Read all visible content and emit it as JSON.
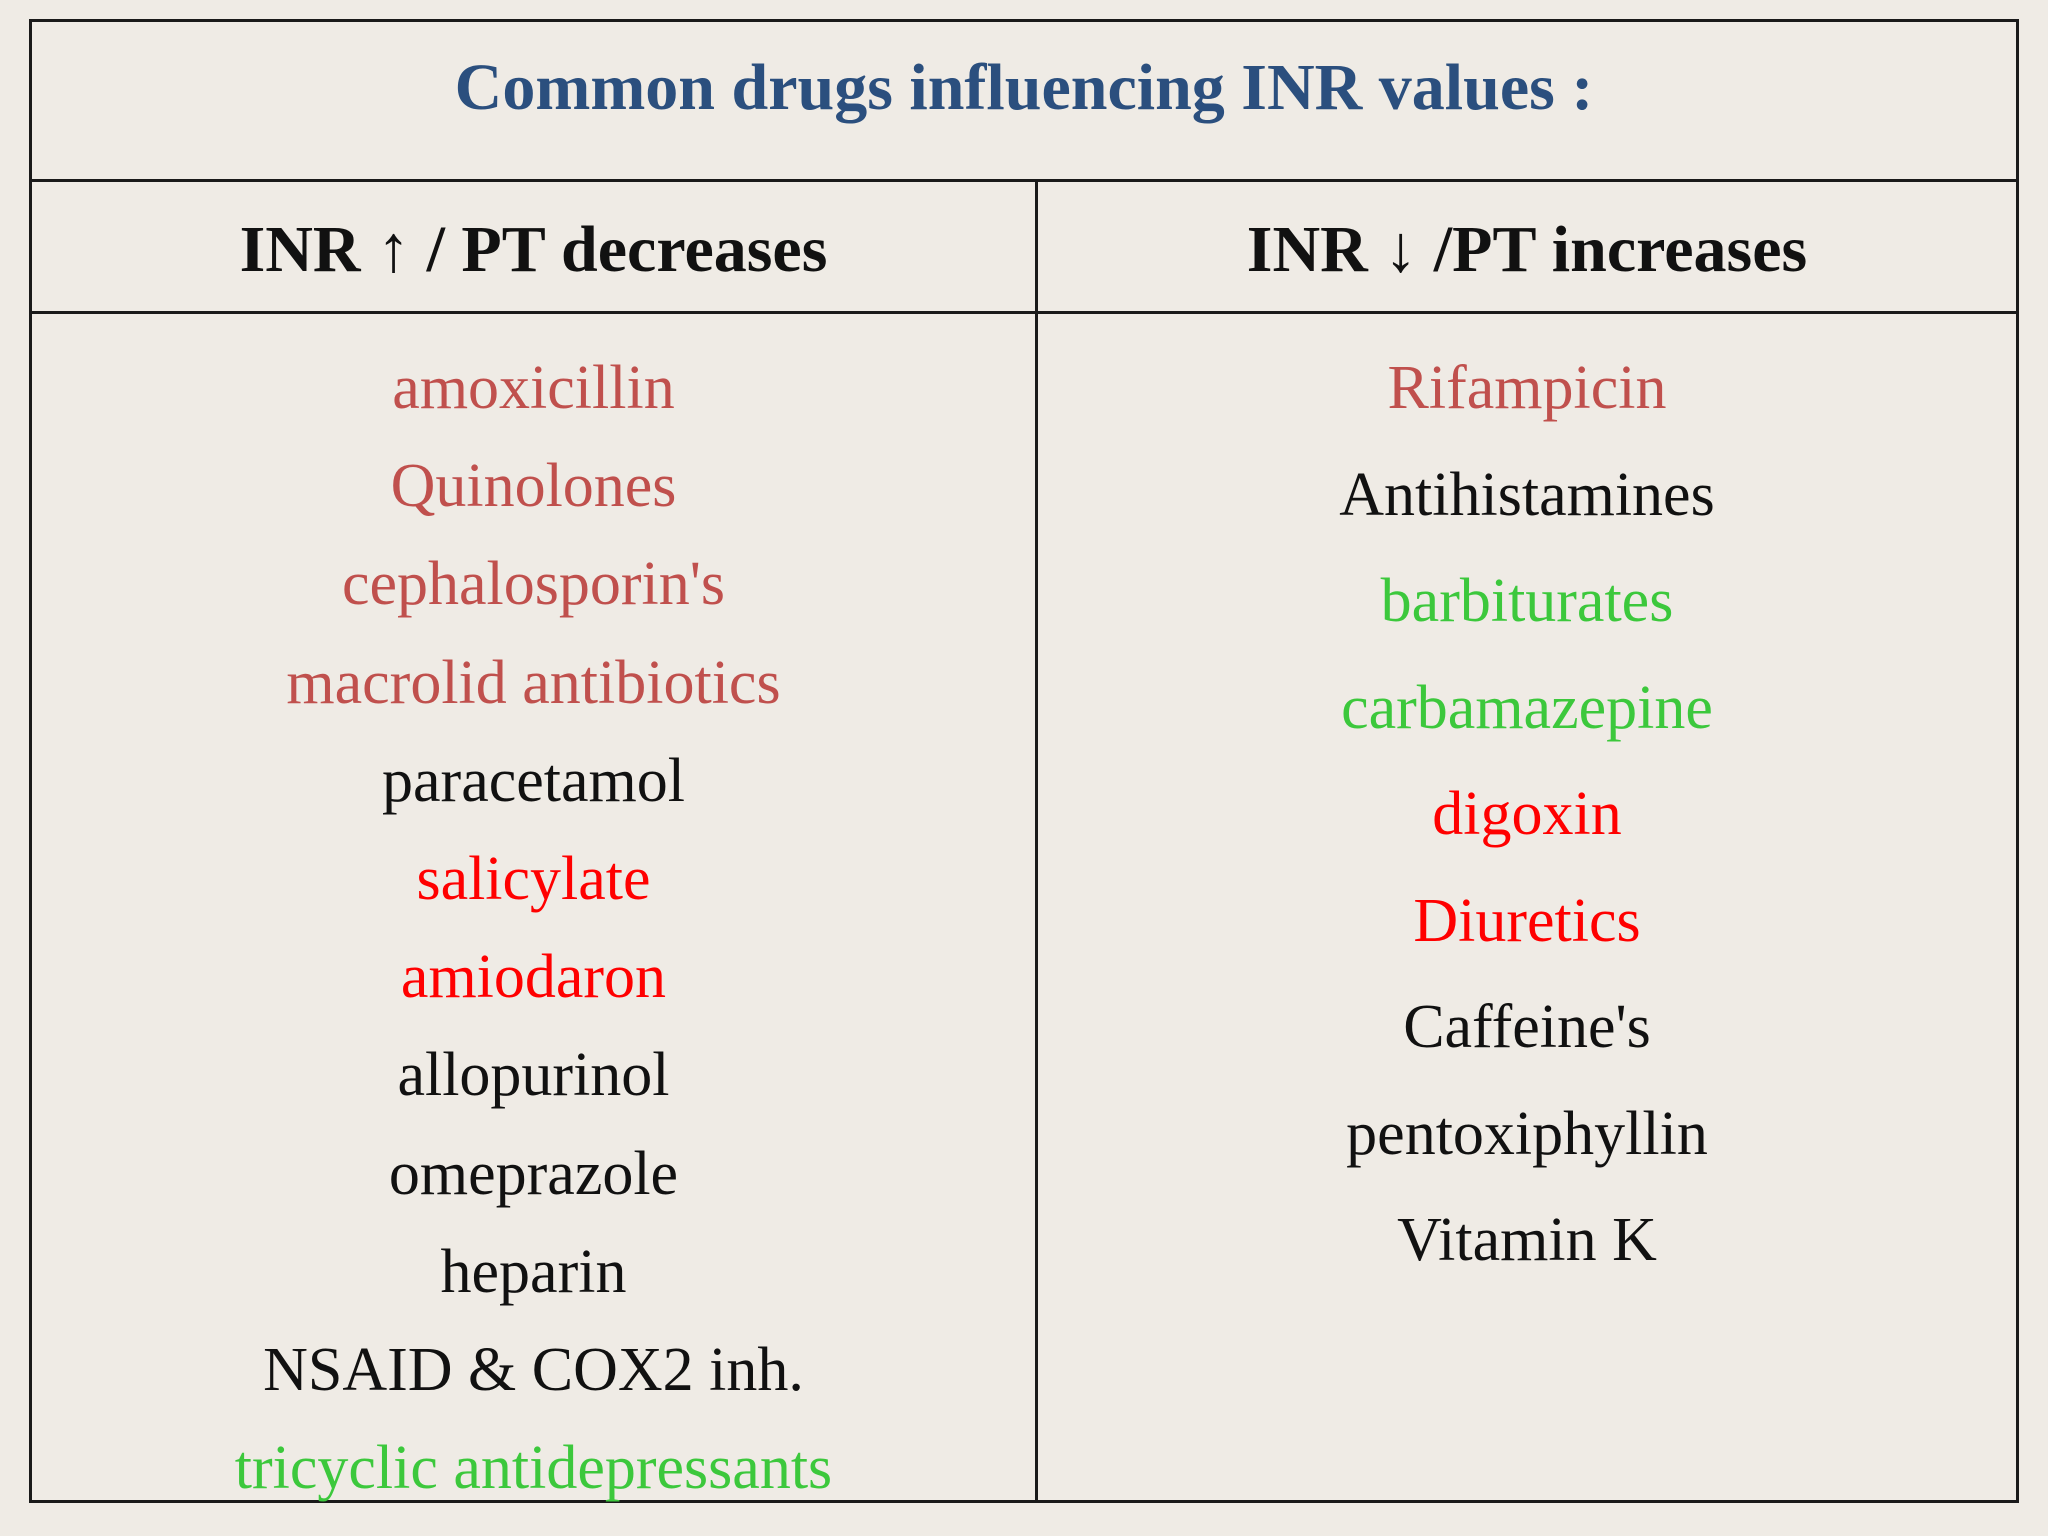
{
  "title": "Common drugs influencing INR values :",
  "columns": {
    "left": {
      "header": "INR ↑ / PT decreases",
      "items": [
        {
          "text": "amoxicillin",
          "color": "#c0504d"
        },
        {
          "text": "Quinolones",
          "color": "#c0504d"
        },
        {
          "text": "cephalosporin's",
          "color": "#c0504d"
        },
        {
          "text": "macrolid antibiotics",
          "color": "#c0504d"
        },
        {
          "text": "paracetamol",
          "color": "#111111"
        },
        {
          "text": "salicylate",
          "color": "#ff0000"
        },
        {
          "text": "amiodaron",
          "color": "#ff0000"
        },
        {
          "text": "allopurinol",
          "color": "#111111"
        },
        {
          "text": "omeprazole",
          "color": "#111111"
        },
        {
          "text": "heparin",
          "color": "#111111"
        },
        {
          "text": "NSAID & COX2 inh.",
          "color": "#111111"
        },
        {
          "text": "tricyclic antidepressants",
          "color": "#3cc83c"
        }
      ]
    },
    "right": {
      "header": "INR ↓ /PT increases",
      "items": [
        {
          "text": "Rifampicin",
          "color": "#c0504d"
        },
        {
          "text": "Antihistamines",
          "color": "#111111"
        },
        {
          "text": "barbiturates",
          "color": "#3cc83c"
        },
        {
          "text": "carbamazepine",
          "color": "#3cc83c"
        },
        {
          "text": "digoxin",
          "color": "#ff0000"
        },
        {
          "text": "Diuretics",
          "color": "#ff0000"
        },
        {
          "text": "Caffeine's",
          "color": "#111111"
        },
        {
          "text": "pentoxiphyllin",
          "color": "#111111"
        },
        {
          "text": "Vitamin K",
          "color": "#111111"
        }
      ]
    }
  }
}
